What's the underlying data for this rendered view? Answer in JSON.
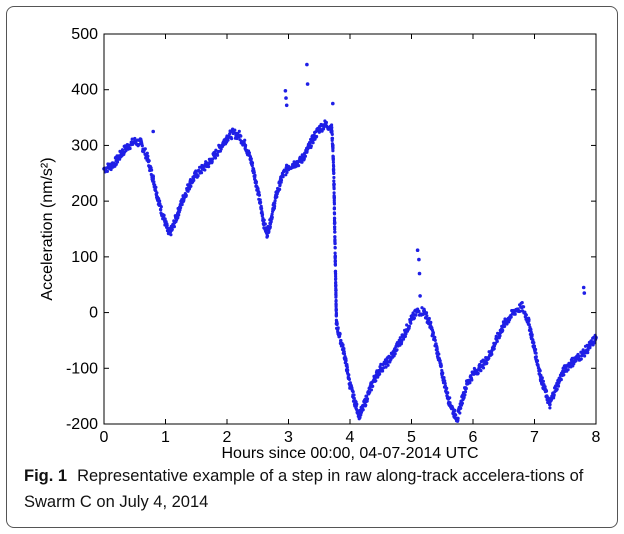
{
  "caption": {
    "label": "Fig. 1",
    "text": "Representative example of a step in raw along-track accelera-tions of Swarm C on July 4, 2014"
  },
  "chart_data": {
    "type": "scatter",
    "xlabel": "Hours since 00:00, 04-07-2014 UTC",
    "ylabel": "Acceleration (nm/s²)",
    "xlim": [
      0,
      8
    ],
    "ylim": [
      -200,
      500
    ],
    "xticks": [
      0,
      1,
      2,
      3,
      4,
      5,
      6,
      7,
      8
    ],
    "yticks": [
      -200,
      -100,
      0,
      100,
      200,
      300,
      400,
      500
    ],
    "marker_color": "#1f1fe6",
    "grid": false,
    "series": [
      {
        "points": [
          [
            0.0,
            258
          ],
          [
            0.1,
            262
          ],
          [
            0.2,
            272
          ],
          [
            0.3,
            288
          ],
          [
            0.4,
            300
          ],
          [
            0.5,
            307
          ],
          [
            0.6,
            304
          ],
          [
            0.7,
            280
          ],
          [
            0.8,
            240
          ],
          [
            0.9,
            195
          ],
          [
            1.0,
            160
          ],
          [
            1.05,
            142
          ],
          [
            1.1,
            148
          ],
          [
            1.2,
            178
          ],
          [
            1.3,
            208
          ],
          [
            1.4,
            232
          ],
          [
            1.5,
            248
          ],
          [
            1.6,
            258
          ],
          [
            1.7,
            268
          ],
          [
            1.8,
            282
          ],
          [
            1.9,
            298
          ],
          [
            2.0,
            315
          ],
          [
            2.1,
            322
          ],
          [
            2.2,
            318
          ],
          [
            2.3,
            300
          ],
          [
            2.4,
            270
          ],
          [
            2.5,
            220
          ],
          [
            2.6,
            160
          ],
          [
            2.65,
            142
          ],
          [
            2.7,
            160
          ],
          [
            2.8,
            210
          ],
          [
            2.9,
            245
          ],
          [
            3.0,
            262
          ],
          [
            3.1,
            268
          ],
          [
            3.2,
            272
          ],
          [
            3.3,
            290
          ],
          [
            3.4,
            312
          ],
          [
            3.5,
            330
          ],
          [
            3.6,
            338
          ],
          [
            3.7,
            332
          ],
          [
            3.72,
            300
          ],
          [
            3.74,
            230
          ],
          [
            3.75,
            160
          ],
          [
            3.76,
            100
          ],
          [
            3.77,
            40
          ],
          [
            3.78,
            -20
          ],
          [
            3.8,
            -30
          ],
          [
            3.9,
            -70
          ],
          [
            4.0,
            -130
          ],
          [
            4.1,
            -168
          ],
          [
            4.15,
            -183
          ],
          [
            4.2,
            -175
          ],
          [
            4.3,
            -145
          ],
          [
            4.4,
            -118
          ],
          [
            4.5,
            -100
          ],
          [
            4.6,
            -90
          ],
          [
            4.7,
            -75
          ],
          [
            4.8,
            -55
          ],
          [
            4.9,
            -35
          ],
          [
            5.0,
            -12
          ],
          [
            5.1,
            2
          ],
          [
            5.2,
            3
          ],
          [
            5.3,
            -20
          ],
          [
            5.4,
            -60
          ],
          [
            5.5,
            -110
          ],
          [
            5.6,
            -155
          ],
          [
            5.7,
            -182
          ],
          [
            5.75,
            -190
          ],
          [
            5.8,
            -165
          ],
          [
            5.9,
            -128
          ],
          [
            6.0,
            -110
          ],
          [
            6.1,
            -100
          ],
          [
            6.2,
            -88
          ],
          [
            6.3,
            -70
          ],
          [
            6.4,
            -45
          ],
          [
            6.5,
            -22
          ],
          [
            6.6,
            -8
          ],
          [
            6.7,
            5
          ],
          [
            6.8,
            10
          ],
          [
            6.9,
            -15
          ],
          [
            7.0,
            -65
          ],
          [
            7.1,
            -115
          ],
          [
            7.2,
            -150
          ],
          [
            7.25,
            -165
          ],
          [
            7.3,
            -148
          ],
          [
            7.4,
            -122
          ],
          [
            7.5,
            -100
          ],
          [
            7.6,
            -90
          ],
          [
            7.7,
            -82
          ],
          [
            7.8,
            -72
          ],
          [
            7.9,
            -60
          ],
          [
            8.0,
            -45
          ]
        ],
        "outliers": [
          [
            0.8,
            325
          ],
          [
            2.95,
            398
          ],
          [
            2.96,
            385
          ],
          [
            2.97,
            372
          ],
          [
            3.3,
            445
          ],
          [
            3.31,
            410
          ],
          [
            3.72,
            375
          ],
          [
            5.1,
            112
          ],
          [
            5.12,
            95
          ],
          [
            5.13,
            70
          ],
          [
            5.14,
            30
          ],
          [
            7.8,
            45
          ],
          [
            7.81,
            35
          ]
        ]
      }
    ]
  }
}
